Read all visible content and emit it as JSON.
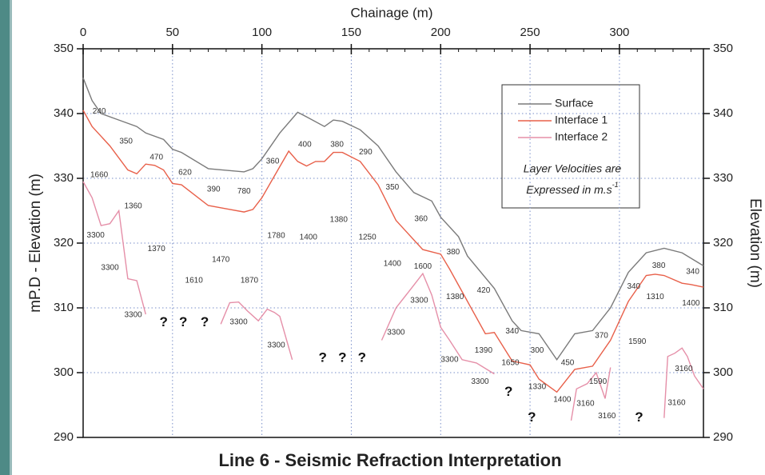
{
  "chart_data": {
    "type": "line",
    "title": "Line 6 - Seismic Refraction Interpretation",
    "x_label": "Chainage (m)",
    "y_label": "mP.D - Elevation (m)",
    "y2_label": "Elevation (m)",
    "xlim": [
      0,
      347
    ],
    "xticks": [
      0,
      50,
      100,
      150,
      200,
      250,
      300
    ],
    "ylim": [
      290,
      350
    ],
    "yticks": [
      290,
      300,
      310,
      320,
      330,
      340,
      350
    ],
    "y2lim": [
      290,
      350
    ],
    "y2ticks": [
      290,
      300,
      310,
      320,
      330,
      340,
      350
    ],
    "grid": true,
    "note": [
      "Layer Velocities are",
      "Expressed in m.s"
    ],
    "note_superscript": "-1",
    "series": [
      {
        "name": "Surface",
        "color": "#7a7a7a",
        "x": [
          0,
          5,
          10,
          20,
          30,
          35,
          45,
          50,
          55,
          70,
          90,
          95,
          100,
          110,
          120,
          125,
          135,
          140,
          145,
          155,
          165,
          175,
          185,
          195,
          200,
          210,
          215,
          230,
          240,
          245,
          255,
          265,
          275,
          285,
          295,
          305,
          315,
          325,
          335,
          347
        ],
        "values": [
          345.5,
          342,
          340,
          339,
          338,
          337,
          336,
          334.5,
          334,
          331.5,
          331,
          331.5,
          333,
          337,
          340.2,
          339.5,
          338,
          339,
          338.8,
          337.5,
          335,
          331,
          327.8,
          326.5,
          324,
          321,
          318,
          313,
          308,
          306.5,
          306,
          302,
          306,
          306.5,
          310,
          315.5,
          318.5,
          319.2,
          318.5,
          316.5
        ]
      },
      {
        "name": "Interface 1",
        "color": "#e8604a",
        "x": [
          0,
          5,
          15,
          25,
          30,
          35,
          40,
          45,
          50,
          55,
          70,
          80,
          90,
          95,
          100,
          110,
          115,
          120,
          125,
          130,
          135,
          140,
          145,
          155,
          165,
          175,
          185,
          190,
          200,
          205,
          215,
          225,
          230,
          240,
          250,
          255,
          265,
          275,
          285,
          295,
          305,
          315,
          320,
          325,
          335,
          340,
          347
        ],
        "values": [
          340.5,
          338,
          335,
          331.3,
          330.7,
          332.2,
          332,
          331.3,
          329.2,
          329,
          325.8,
          325.3,
          324.8,
          325.2,
          327,
          331.8,
          334.2,
          332.6,
          331.9,
          332.6,
          332.6,
          334,
          334,
          332.6,
          329,
          323.5,
          320.5,
          319,
          318.3,
          316,
          311,
          306,
          306.2,
          301.8,
          301.2,
          299,
          297,
          300.5,
          301,
          305,
          311,
          315,
          315.2,
          315,
          313.8,
          313.6,
          313.2
        ]
      },
      {
        "name": "Interface 2",
        "color": "#e58fa8",
        "x": [
          0,
          5,
          10,
          15,
          20,
          25,
          30,
          35,
          null,
          77,
          82,
          87,
          92,
          98,
          103,
          107,
          110,
          117,
          null,
          167,
          175,
          185,
          190,
          195,
          200,
          205,
          212,
          220,
          230,
          null,
          273,
          276,
          282,
          287,
          292,
          295,
          null,
          325,
          327,
          331,
          335,
          338,
          342,
          347
        ],
        "values": [
          329.5,
          327,
          322.7,
          323,
          325,
          314.5,
          314.2,
          309,
          null,
          307.5,
          310.8,
          310.9,
          309.5,
          308,
          309.8,
          309.3,
          308.7,
          302,
          null,
          305,
          310,
          313.5,
          315.3,
          312,
          307,
          305,
          302,
          301.5,
          299.8,
          null,
          292.6,
          297.5,
          298.3,
          300,
          296,
          300.8,
          null,
          293,
          302.5,
          303,
          303.8,
          302.5,
          299.5,
          297.5
        ]
      }
    ],
    "annotations": [
      {
        "text": "240",
        "x": 9,
        "y": 340.3
      },
      {
        "text": "350",
        "x": 24,
        "y": 335.7
      },
      {
        "text": "470",
        "x": 41,
        "y": 333.2
      },
      {
        "text": "620",
        "x": 57,
        "y": 330.9
      },
      {
        "text": "390",
        "x": 73,
        "y": 328.3
      },
      {
        "text": "780",
        "x": 90,
        "y": 328
      },
      {
        "text": "360",
        "x": 106,
        "y": 332.6
      },
      {
        "text": "400",
        "x": 124,
        "y": 335.2
      },
      {
        "text": "380",
        "x": 142,
        "y": 335.2
      },
      {
        "text": "290",
        "x": 158,
        "y": 334
      },
      {
        "text": "1660",
        "x": 9,
        "y": 330.5
      },
      {
        "text": "1360",
        "x": 28,
        "y": 325.7
      },
      {
        "text": "3300",
        "x": 7,
        "y": 321.2
      },
      {
        "text": "1370",
        "x": 41,
        "y": 319.1
      },
      {
        "text": "3300",
        "x": 15,
        "y": 316.2
      },
      {
        "text": "1470",
        "x": 77,
        "y": 317.4
      },
      {
        "text": "1610",
        "x": 62,
        "y": 314.2
      },
      {
        "text": "1870",
        "x": 93,
        "y": 314.2
      },
      {
        "text": "1780",
        "x": 108,
        "y": 321.1
      },
      {
        "text": "1400",
        "x": 126,
        "y": 320.9
      },
      {
        "text": "1380",
        "x": 143,
        "y": 323.6
      },
      {
        "text": "1250",
        "x": 159,
        "y": 320.9
      },
      {
        "text": "350",
        "x": 173,
        "y": 328.6
      },
      {
        "text": "360",
        "x": 189,
        "y": 323.7
      },
      {
        "text": "380",
        "x": 207,
        "y": 318.6
      },
      {
        "text": "1400",
        "x": 173,
        "y": 316.8
      },
      {
        "text": "1600",
        "x": 190,
        "y": 316.4
      },
      {
        "text": "3300",
        "x": 188,
        "y": 311.1
      },
      {
        "text": "1380",
        "x": 208,
        "y": 311.7
      },
      {
        "text": "420",
        "x": 224,
        "y": 312.7
      },
      {
        "text": "340",
        "x": 240,
        "y": 306.4
      },
      {
        "text": "3300",
        "x": 28,
        "y": 308.9
      },
      {
        "text": "3300",
        "x": 87,
        "y": 307.8
      },
      {
        "text": "3300",
        "x": 108,
        "y": 304.2
      },
      {
        "text": "3300",
        "x": 175,
        "y": 306.2
      },
      {
        "text": "3300",
        "x": 205,
        "y": 302
      },
      {
        "text": "1390",
        "x": 224,
        "y": 303.4
      },
      {
        "text": "1650",
        "x": 239,
        "y": 301.5
      },
      {
        "text": "3300",
        "x": 222,
        "y": 298.6
      },
      {
        "text": "300",
        "x": 254,
        "y": 303.4
      },
      {
        "text": "1330",
        "x": 254,
        "y": 297.8
      },
      {
        "text": "450",
        "x": 271,
        "y": 301.5
      },
      {
        "text": "370",
        "x": 290,
        "y": 305.7
      },
      {
        "text": "1590",
        "x": 310,
        "y": 304.8
      },
      {
        "text": "1590",
        "x": 288,
        "y": 298.6
      },
      {
        "text": "1400",
        "x": 268,
        "y": 295.8
      },
      {
        "text": "3160",
        "x": 281,
        "y": 295.2
      },
      {
        "text": "3160",
        "x": 293,
        "y": 293.3
      },
      {
        "text": "340",
        "x": 308,
        "y": 313.3
      },
      {
        "text": "380",
        "x": 322,
        "y": 316.5
      },
      {
        "text": "1310",
        "x": 320,
        "y": 311.7
      },
      {
        "text": "340",
        "x": 341,
        "y": 315.6
      },
      {
        "text": "1400",
        "x": 340,
        "y": 310.7
      },
      {
        "text": "3160",
        "x": 336,
        "y": 300.6
      },
      {
        "text": "3160",
        "x": 332,
        "y": 295.3
      },
      {
        "text": "?",
        "x": 45,
        "y": 307.7
      },
      {
        "text": "?",
        "x": 56,
        "y": 307.7
      },
      {
        "text": "?",
        "x": 68,
        "y": 307.7
      },
      {
        "text": "?",
        "x": 134,
        "y": 302.2
      },
      {
        "text": "?",
        "x": 145,
        "y": 302.2
      },
      {
        "text": "?",
        "x": 156,
        "y": 302.2
      },
      {
        "text": "?",
        "x": 238,
        "y": 297
      },
      {
        "text": "?",
        "x": 251,
        "y": 293
      },
      {
        "text": "?",
        "x": 311,
        "y": 293
      }
    ]
  }
}
